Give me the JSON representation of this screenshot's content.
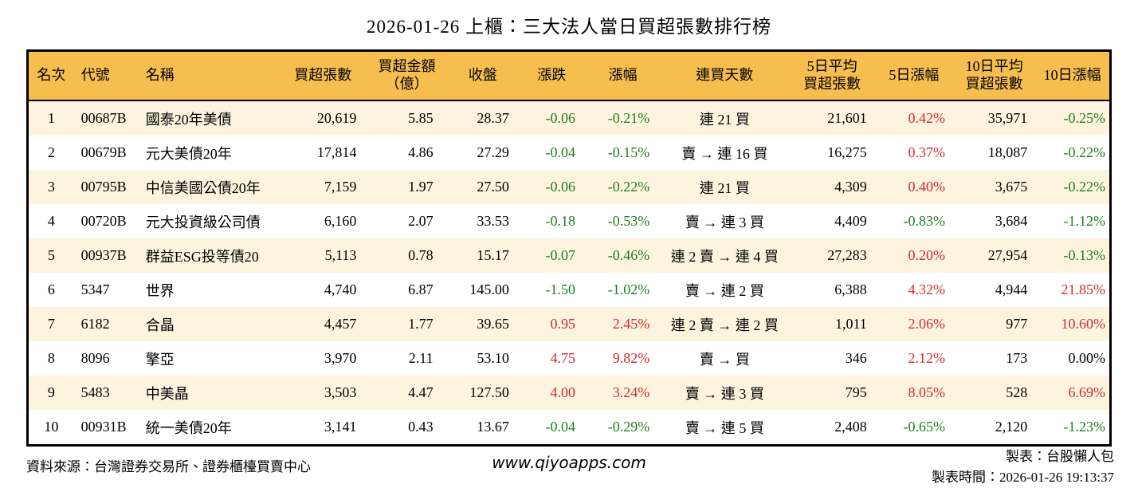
{
  "title": "2026-01-26 上櫃：三大法人當日買超張數排行榜",
  "colors": {
    "header_bg": "#F6BE4F",
    "row_alt_bg": "#FCF4DF",
    "up_red": "#D32A2A",
    "down_green": "#1F7D1F",
    "border": "#000000"
  },
  "table": {
    "columns": [
      {
        "key": "rank",
        "label": "名次",
        "align": "a-c"
      },
      {
        "key": "code",
        "label": "代號",
        "align": "a-l"
      },
      {
        "key": "name",
        "label": "名稱",
        "align": "a-l"
      },
      {
        "key": "netbuy",
        "label": "買超張數",
        "align": "a-r"
      },
      {
        "key": "amount",
        "label": "買超金額\n（億）",
        "align": "a-r"
      },
      {
        "key": "close",
        "label": "收盤",
        "align": "a-r"
      },
      {
        "key": "chg",
        "label": "漲跌",
        "align": "a-r",
        "signed": true
      },
      {
        "key": "chgpct",
        "label": "漲幅",
        "align": "a-r",
        "signed": true
      },
      {
        "key": "streak",
        "label": "連買天數",
        "align": "a-c"
      },
      {
        "key": "avg5",
        "label": "5日平均\n買超張數",
        "align": "a-r"
      },
      {
        "key": "pct5",
        "label": "5日漲幅",
        "align": "a-r",
        "signed": true
      },
      {
        "key": "avg10",
        "label": "10日平均\n買超張數",
        "align": "a-r"
      },
      {
        "key": "pct10",
        "label": "10日漲幅",
        "align": "a-r",
        "signed": true
      }
    ],
    "rows": [
      {
        "rank": "1",
        "code": "00687B",
        "name": "國泰20年美債",
        "netbuy": "20,619",
        "amount": "5.85",
        "close": "28.37",
        "chg": "-0.06",
        "chgpct": "-0.21%",
        "streak": "連 21 買",
        "avg5": "21,601",
        "pct5": "0.42%",
        "avg10": "35,971",
        "pct10": "-0.25%"
      },
      {
        "rank": "2",
        "code": "00679B",
        "name": "元大美債20年",
        "netbuy": "17,814",
        "amount": "4.86",
        "close": "27.29",
        "chg": "-0.04",
        "chgpct": "-0.15%",
        "streak": "賣 → 連 16 買",
        "avg5": "16,275",
        "pct5": "0.37%",
        "avg10": "18,087",
        "pct10": "-0.22%"
      },
      {
        "rank": "3",
        "code": "00795B",
        "name": "中信美國公債20年",
        "netbuy": "7,159",
        "amount": "1.97",
        "close": "27.50",
        "chg": "-0.06",
        "chgpct": "-0.22%",
        "streak": "連 21 買",
        "avg5": "4,309",
        "pct5": "0.40%",
        "avg10": "3,675",
        "pct10": "-0.22%"
      },
      {
        "rank": "4",
        "code": "00720B",
        "name": "元大投資級公司債",
        "netbuy": "6,160",
        "amount": "2.07",
        "close": "33.53",
        "chg": "-0.18",
        "chgpct": "-0.53%",
        "streak": "賣 → 連 3 買",
        "avg5": "4,409",
        "pct5": "-0.83%",
        "avg10": "3,684",
        "pct10": "-1.12%"
      },
      {
        "rank": "5",
        "code": "00937B",
        "name": "群益ESG投等債20",
        "netbuy": "5,113",
        "amount": "0.78",
        "close": "15.17",
        "chg": "-0.07",
        "chgpct": "-0.46%",
        "streak": "連 2 賣 → 連 4 買",
        "avg5": "27,283",
        "pct5": "0.20%",
        "avg10": "27,954",
        "pct10": "-0.13%"
      },
      {
        "rank": "6",
        "code": "5347",
        "name": "世界",
        "netbuy": "4,740",
        "amount": "6.87",
        "close": "145.00",
        "chg": "-1.50",
        "chgpct": "-1.02%",
        "streak": "賣 → 連 2 買",
        "avg5": "6,388",
        "pct5": "4.32%",
        "avg10": "4,944",
        "pct10": "21.85%"
      },
      {
        "rank": "7",
        "code": "6182",
        "name": "合晶",
        "netbuy": "4,457",
        "amount": "1.77",
        "close": "39.65",
        "chg": "0.95",
        "chgpct": "2.45%",
        "streak": "連 2 賣 → 連 2 買",
        "avg5": "1,011",
        "pct5": "2.06%",
        "avg10": "977",
        "pct10": "10.60%"
      },
      {
        "rank": "8",
        "code": "8096",
        "name": "擎亞",
        "netbuy": "3,970",
        "amount": "2.11",
        "close": "53.10",
        "chg": "4.75",
        "chgpct": "9.82%",
        "streak": "賣 → 買",
        "avg5": "346",
        "pct5": "2.12%",
        "avg10": "173",
        "pct10": "0.00%"
      },
      {
        "rank": "9",
        "code": "5483",
        "name": "中美晶",
        "netbuy": "3,503",
        "amount": "4.47",
        "close": "127.50",
        "chg": "4.00",
        "chgpct": "3.24%",
        "streak": "賣 → 連 3 買",
        "avg5": "795",
        "pct5": "8.05%",
        "avg10": "528",
        "pct10": "6.69%"
      },
      {
        "rank": "10",
        "code": "00931B",
        "name": "統一美債20年",
        "netbuy": "3,141",
        "amount": "0.43",
        "close": "13.67",
        "chg": "-0.04",
        "chgpct": "-0.29%",
        "streak": "賣 → 連 5 買",
        "avg5": "2,408",
        "pct5": "-0.65%",
        "avg10": "2,120",
        "pct10": "-1.23%"
      }
    ]
  },
  "footer": {
    "source": "資料來源：台灣證券交易所、證券櫃檯買賣中心",
    "site": "www.qiyoapps.com",
    "credit": "製表：台股懶人包",
    "generated": "製表時間：2026-01-26 19:13:37"
  }
}
